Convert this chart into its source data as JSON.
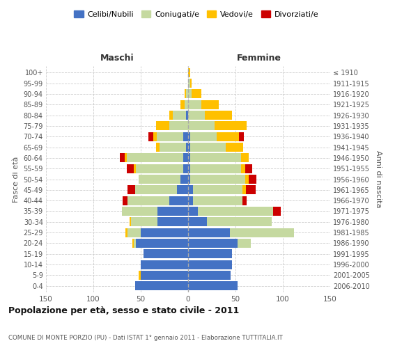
{
  "age_groups": [
    "0-4",
    "5-9",
    "10-14",
    "15-19",
    "20-24",
    "25-29",
    "30-34",
    "35-39",
    "40-44",
    "45-49",
    "50-54",
    "55-59",
    "60-64",
    "65-69",
    "70-74",
    "75-79",
    "80-84",
    "85-89",
    "90-94",
    "95-99",
    "100+"
  ],
  "birth_years": [
    "2006-2010",
    "2001-2005",
    "1996-2000",
    "1991-1995",
    "1986-1990",
    "1981-1985",
    "1976-1980",
    "1971-1975",
    "1966-1970",
    "1961-1965",
    "1956-1960",
    "1951-1955",
    "1946-1950",
    "1941-1945",
    "1936-1940",
    "1931-1935",
    "1926-1930",
    "1921-1925",
    "1916-1920",
    "1911-1915",
    "≤ 1910"
  ],
  "males": {
    "celibi": [
      56,
      50,
      50,
      47,
      55,
      50,
      32,
      32,
      20,
      12,
      8,
      5,
      5,
      2,
      5,
      0,
      2,
      0,
      0,
      0,
      0
    ],
    "coniugati": [
      0,
      0,
      0,
      0,
      2,
      14,
      28,
      38,
      44,
      44,
      44,
      50,
      60,
      28,
      28,
      20,
      14,
      4,
      2,
      0,
      0
    ],
    "vedovi": [
      0,
      2,
      0,
      0,
      2,
      2,
      2,
      0,
      0,
      0,
      0,
      2,
      2,
      4,
      4,
      14,
      4,
      4,
      2,
      0,
      0
    ],
    "divorziati": [
      0,
      0,
      0,
      0,
      0,
      0,
      0,
      0,
      5,
      8,
      0,
      8,
      5,
      0,
      5,
      0,
      0,
      0,
      0,
      0,
      0
    ]
  },
  "females": {
    "nubili": [
      52,
      45,
      46,
      46,
      52,
      44,
      20,
      10,
      5,
      5,
      2,
      2,
      2,
      2,
      2,
      0,
      0,
      0,
      0,
      0,
      0
    ],
    "coniugate": [
      0,
      0,
      0,
      0,
      14,
      68,
      68,
      80,
      52,
      52,
      58,
      54,
      54,
      38,
      28,
      28,
      18,
      14,
      4,
      2,
      0
    ],
    "vedove": [
      0,
      0,
      0,
      0,
      0,
      0,
      0,
      0,
      0,
      4,
      4,
      4,
      8,
      18,
      24,
      34,
      28,
      18,
      10,
      2,
      2
    ],
    "divorziate": [
      0,
      0,
      0,
      0,
      0,
      0,
      0,
      8,
      5,
      10,
      8,
      8,
      0,
      0,
      5,
      0,
      0,
      0,
      0,
      0,
      0
    ]
  },
  "colors": {
    "celibi": "#4472c4",
    "coniugati": "#c5d9a0",
    "vedovi": "#ffc000",
    "divorziati": "#cc0000"
  },
  "title": "Popolazione per età, sesso e stato civile - 2011",
  "subtitle": "COMUNE DI MONTE PORZIO (PU) - Dati ISTAT 1° gennaio 2011 - Elaborazione TUTTITALIA.IT",
  "xlabel_left": "Maschi",
  "xlabel_right": "Femmine",
  "ylabel_left": "Fasce di età",
  "ylabel_right": "Anni di nascita",
  "xlim": 150,
  "legend_labels": [
    "Celibi/Nubili",
    "Coniugati/e",
    "Vedovi/e",
    "Divorziati/e"
  ],
  "background_color": "#ffffff",
  "grid_color": "#cccccc"
}
